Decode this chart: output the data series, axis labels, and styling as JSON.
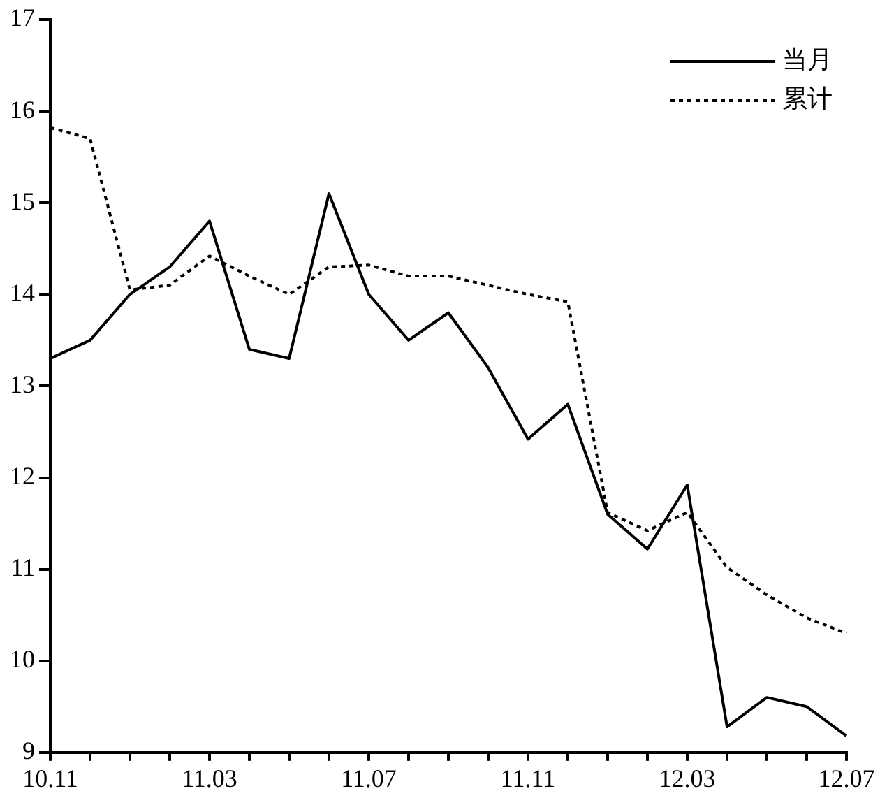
{
  "chart_data": {
    "type": "line",
    "categories": [
      "10.11",
      null,
      null,
      null,
      "11.03",
      null,
      null,
      null,
      "11.07",
      null,
      null,
      null,
      "11.11",
      null,
      null,
      null,
      "12.03",
      null,
      null,
      null,
      "12.07"
    ],
    "series": [
      {
        "name": "当月",
        "color": "#000000",
        "line_style": "solid",
        "values": [
          13.3,
          13.5,
          14.0,
          14.3,
          14.8,
          13.4,
          13.3,
          15.1,
          14.0,
          13.5,
          13.8,
          13.2,
          12.42,
          12.8,
          11.6,
          11.22,
          11.92,
          9.28,
          9.6,
          9.5,
          9.18
        ]
      },
      {
        "name": "累计",
        "color": "#000000",
        "line_style": "dotted",
        "values": [
          15.82,
          15.7,
          14.05,
          14.1,
          14.42,
          14.2,
          14.0,
          14.3,
          14.32,
          14.2,
          14.2,
          14.1,
          14.0,
          13.92,
          11.62,
          11.42,
          11.62,
          11.02,
          10.72,
          10.47,
          10.3
        ]
      }
    ],
    "ylim": [
      9,
      17
    ],
    "yticks": [
      9,
      10,
      11,
      12,
      13,
      14,
      15,
      16,
      17
    ],
    "grid": false,
    "legend": "top right",
    "marker": "none"
  }
}
